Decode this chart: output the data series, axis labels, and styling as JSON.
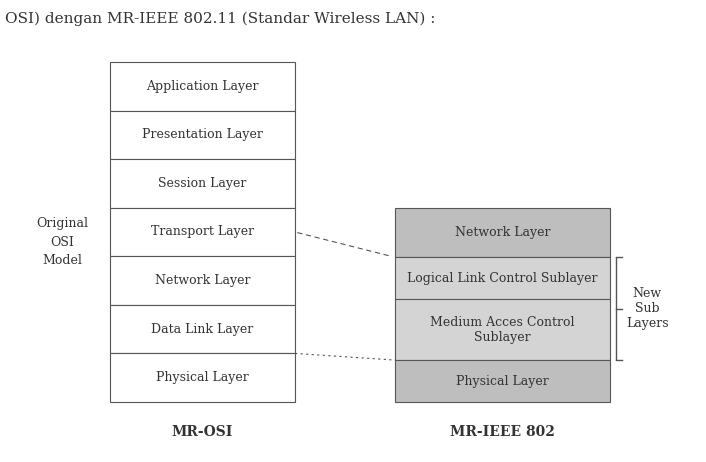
{
  "title_text": "OSI) dengan MR-IEEE 802.11 (Standar Wireless LAN) :",
  "left_label": "Original\nOSI\nModel",
  "osi_layers": [
    "Application Layer",
    "Presentation Layer",
    "Session Layer",
    "Transport Layer",
    "Network Layer",
    "Data Link Layer",
    "Physical Layer"
  ],
  "ieee_layers": [
    "Network Layer",
    "Logical Link Control Sublayer",
    "Medium Acces Control\nSublayer",
    "Physical Layer"
  ],
  "ieee_colors": [
    "#bebebe",
    "#d4d4d4",
    "#d4d4d4",
    "#bebebe"
  ],
  "right_label": "New\nSub\nLayers",
  "bottom_left_label": "MR-OSI",
  "bottom_right_label": "MR-IEEE 802",
  "bg_color": "#ffffff",
  "box_color_osi": "#ffffff",
  "border_color": "#555555",
  "text_color": "#333333",
  "font_size": 9,
  "title_font_size": 11
}
